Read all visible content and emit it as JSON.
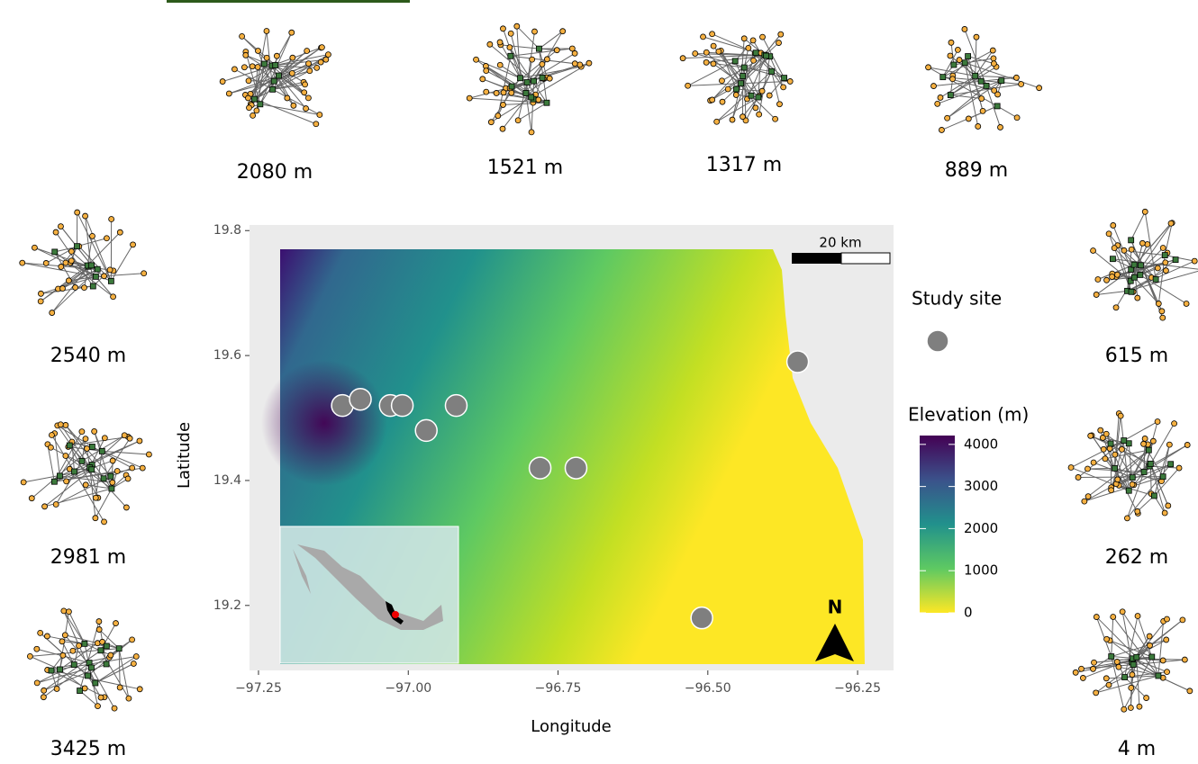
{
  "chart_data": {
    "type": "scatter",
    "xlabel": "Longitude",
    "ylabel": "Latitude",
    "xlim": [
      -97.265,
      -96.19
    ],
    "ylim": [
      19.096,
      19.809
    ],
    "xticks": [
      {
        "value": -97.25,
        "label": "−97.25"
      },
      {
        "value": -97.0,
        "label": "−97.00"
      },
      {
        "value": -96.75,
        "label": "−96.75"
      },
      {
        "value": -96.5,
        "label": "−96.50"
      },
      {
        "value": -96.25,
        "label": "−96.25"
      }
    ],
    "yticks": [
      19.2,
      19.4,
      19.6,
      19.8
    ],
    "series": [
      {
        "name": "Study site",
        "color": "#7f7f7f",
        "x": [
          -97.11,
          -97.08,
          -97.03,
          -97.01,
          -96.97,
          -96.92,
          -96.78,
          -96.72,
          -96.51,
          -96.35
        ],
        "values": [
          19.52,
          19.53,
          19.52,
          19.52,
          19.48,
          19.52,
          19.42,
          19.42,
          19.18,
          19.59
        ]
      }
    ],
    "colorbar": {
      "title": "Elevation (m)",
      "ylim": [
        0,
        4210
      ],
      "yticks": [
        0,
        1000,
        2000,
        3000,
        4000
      ]
    },
    "scale_bar": "20 km",
    "north_label": "N",
    "networks": [
      "2080 m",
      "1521 m",
      "1317 m",
      "889 m",
      "2540 m",
      "2981 m",
      "3425 m",
      "615 m",
      "262 m",
      "4 m"
    ]
  }
}
